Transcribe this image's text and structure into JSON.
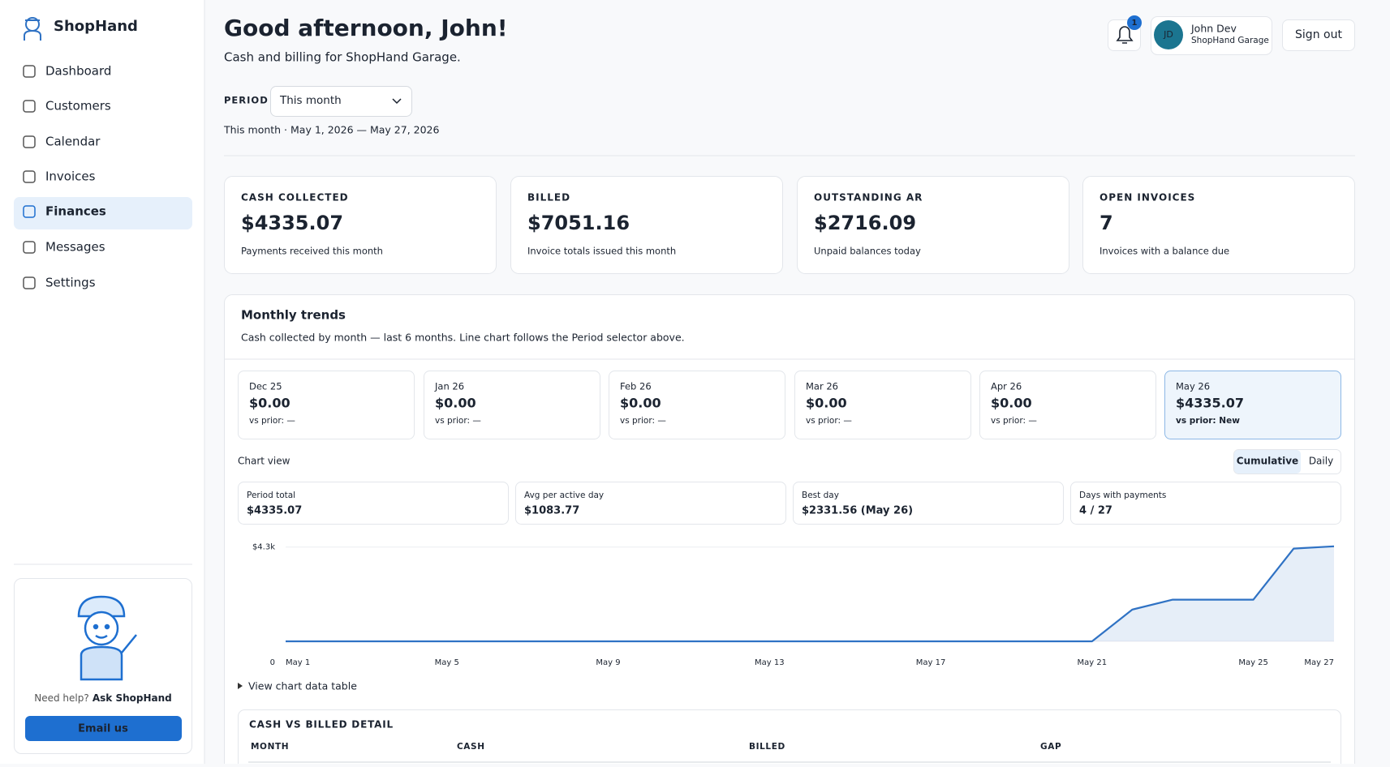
{
  "sidebar": {
    "brand": "ShopHand",
    "nav": [
      "Dashboard",
      "Customers",
      "Calendar",
      "Invoices",
      "Finances",
      "Messages",
      "Settings"
    ],
    "help": {
      "prompt": "Need help?",
      "link": "Ask ShopHand",
      "button": "Email us"
    }
  },
  "header": {
    "title": "Good afternoon, John!",
    "subtitle": "Cash and billing for ShopHand Garage.",
    "notifications": "1",
    "user": {
      "initials": "JD",
      "name": "John Dev",
      "org": "ShopHand Garage"
    },
    "signout": "Sign out"
  },
  "period": {
    "label": "PERIOD",
    "value": "This month",
    "range": "This month · May 1, 2026 — May 27, 2026"
  },
  "kpis": [
    {
      "label": "CASH COLLECTED",
      "value": "$4335.07",
      "note": "Payments received this month"
    },
    {
      "label": "BILLED",
      "value": "$7051.16",
      "note": "Invoice totals issued this month"
    },
    {
      "label": "OUTSTANDING AR",
      "value": "$2716.09",
      "note": "Unpaid balances today"
    },
    {
      "label": "OPEN INVOICES",
      "value": "7",
      "note": "Invoices with a balance due"
    }
  ],
  "trends": {
    "title": "Monthly trends",
    "subtitle": "Cash collected by month — last 6 months. Line chart follows the Period selector above.",
    "months": [
      {
        "label": "Dec 25",
        "value": "$0.00",
        "change": "vs prior: —"
      },
      {
        "label": "Jan 26",
        "value": "$0.00",
        "change": "vs prior: —"
      },
      {
        "label": "Feb 26",
        "value": "$0.00",
        "change": "vs prior: —"
      },
      {
        "label": "Mar 26",
        "value": "$0.00",
        "change": "vs prior: —"
      },
      {
        "label": "Apr 26",
        "value": "$0.00",
        "change": "vs prior: —"
      },
      {
        "label": "May 26",
        "value": "$4335.07",
        "change": "vs prior: New"
      }
    ],
    "chart_view": "Chart view",
    "toggle": [
      "Cumulative",
      "Daily"
    ],
    "stats": [
      {
        "label": "Period total",
        "value": "$4335.07"
      },
      {
        "label": "Avg per active day",
        "value": "$1083.77"
      },
      {
        "label": "Best day",
        "value": "$2331.56 (May 26)"
      },
      {
        "label": "Days with payments",
        "value": "4 / 27"
      }
    ],
    "table_link": "View chart data table"
  },
  "chart_data": {
    "type": "area",
    "categories": [
      "May 1",
      null,
      null,
      null,
      "May 5",
      null,
      null,
      null,
      "May 9",
      null,
      null,
      null,
      "May 13",
      null,
      null,
      null,
      "May 17",
      null,
      null,
      null,
      "May 21",
      null,
      null,
      null,
      "May 25",
      null,
      "May 27"
    ],
    "values": [
      0,
      0,
      0,
      0,
      0,
      0,
      0,
      0,
      0,
      0,
      0,
      0,
      0,
      0,
      0,
      0,
      0,
      0,
      0,
      0,
      0,
      1450,
      1900,
      1900,
      1900,
      4231.56,
      4335.07
    ],
    "color": "#2f72c4",
    "ylim": [
      0,
      4400
    ],
    "yticks": [
      0,
      {
        "value": 4300,
        "label": "$4.3k"
      }
    ],
    "grid": true
  },
  "detail": {
    "title": "CASH VS BILLED DETAIL",
    "columns": [
      "MONTH",
      "CASH",
      "BILLED",
      "GAP"
    ]
  }
}
